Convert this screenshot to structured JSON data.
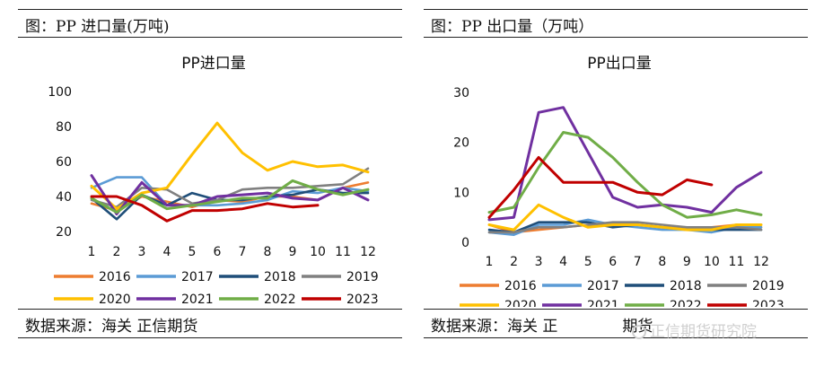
{
  "panels": [
    {
      "title": "图：PP 进口量(万吨)",
      "source": "数据来源：海关      正信期货"
    },
    {
      "title": "图：PP 出口量（万吨）",
      "source": "数据来源：海关      正",
      "source_tail": "期货"
    }
  ],
  "watermark": "正信期货研究院",
  "colors": {
    "2016": "#ED7D31",
    "2017": "#5B9BD5",
    "2018": "#1F4E79",
    "2019": "#808080",
    "2020": "#FFC000",
    "2021": "#7030A0",
    "2022": "#70AD47",
    "2023": "#C00000"
  },
  "chart_data": [
    {
      "type": "line",
      "title": "PP进口量",
      "categories": [
        "1",
        "2",
        "3",
        "4",
        "5",
        "6",
        "7",
        "8",
        "9",
        "10",
        "11",
        "12"
      ],
      "ylim": [
        20,
        100
      ],
      "yticks": [
        20,
        40,
        60,
        80,
        100
      ],
      "legend_position": "bottom",
      "series": [
        {
          "name": "2016",
          "values": [
            36,
            32,
            40,
            37,
            34,
            38,
            37,
            40,
            40,
            38,
            45,
            48
          ]
        },
        {
          "name": "2017",
          "values": [
            45,
            51,
            51,
            35,
            35,
            35,
            36,
            38,
            43,
            42,
            45,
            43
          ]
        },
        {
          "name": "2018",
          "values": [
            39,
            27,
            41,
            35,
            42,
            38,
            38,
            40,
            41,
            44,
            42,
            42
          ]
        },
        {
          "name": "2019",
          "values": [
            38,
            34,
            45,
            44,
            36,
            38,
            44,
            45,
            45,
            46,
            47,
            56
          ]
        },
        {
          "name": "2020",
          "values": [
            46,
            33,
            42,
            45,
            64,
            82,
            65,
            55,
            60,
            57,
            58,
            54
          ]
        },
        {
          "name": "2021",
          "values": [
            52,
            30,
            48,
            35,
            35,
            40,
            41,
            42,
            39,
            38,
            45,
            38
          ]
        },
        {
          "name": "2022",
          "values": [
            39,
            31,
            41,
            33,
            35,
            37,
            39,
            39,
            49,
            44,
            41,
            44
          ]
        },
        {
          "name": "2023",
          "values": [
            40,
            40,
            35,
            26,
            32,
            32,
            33,
            36,
            34,
            35,
            null,
            null
          ]
        }
      ]
    },
    {
      "type": "line",
      "title": "PP出口量",
      "categories": [
        "1",
        "2",
        "3",
        "4",
        "5",
        "6",
        "7",
        "8",
        "9",
        "10",
        "11",
        "12"
      ],
      "ylim": [
        0,
        30
      ],
      "yticks": [
        0,
        10,
        20,
        30
      ],
      "legend_position": "bottom",
      "series": [
        {
          "name": "2016",
          "values": [
            3.5,
            2.0,
            2.5,
            3.0,
            3.5,
            3.5,
            3.5,
            3.0,
            3.0,
            3.0,
            3.5,
            3.0
          ]
        },
        {
          "name": "2017",
          "values": [
            2.0,
            1.5,
            3.5,
            3.5,
            4.5,
            3.5,
            3.0,
            2.5,
            2.5,
            2.0,
            3.0,
            3.0
          ]
        },
        {
          "name": "2018",
          "values": [
            2.5,
            2.0,
            4.0,
            4.0,
            4.0,
            3.0,
            3.5,
            3.0,
            2.5,
            2.5,
            2.5,
            2.5
          ]
        },
        {
          "name": "2019",
          "values": [
            2.0,
            2.0,
            3.0,
            3.0,
            3.5,
            4.0,
            4.0,
            3.5,
            3.0,
            3.0,
            3.0,
            2.5
          ]
        },
        {
          "name": "2020",
          "values": [
            3.5,
            2.5,
            7.5,
            5.0,
            3.0,
            3.5,
            3.5,
            3.0,
            2.5,
            2.5,
            3.5,
            3.5
          ]
        },
        {
          "name": "2021",
          "values": [
            4.5,
            5.0,
            26.0,
            27.0,
            18.0,
            9.0,
            7.0,
            7.5,
            7.0,
            6.0,
            11.0,
            14.0
          ]
        },
        {
          "name": "2022",
          "values": [
            6.0,
            7.0,
            15.0,
            22.0,
            21.0,
            17.0,
            12.0,
            7.5,
            5.0,
            5.5,
            6.5,
            5.5
          ]
        },
        {
          "name": "2023",
          "values": [
            5.0,
            10.5,
            17.0,
            12.0,
            12.0,
            12.0,
            10.0,
            9.5,
            12.5,
            11.5,
            null,
            null
          ]
        }
      ]
    }
  ]
}
